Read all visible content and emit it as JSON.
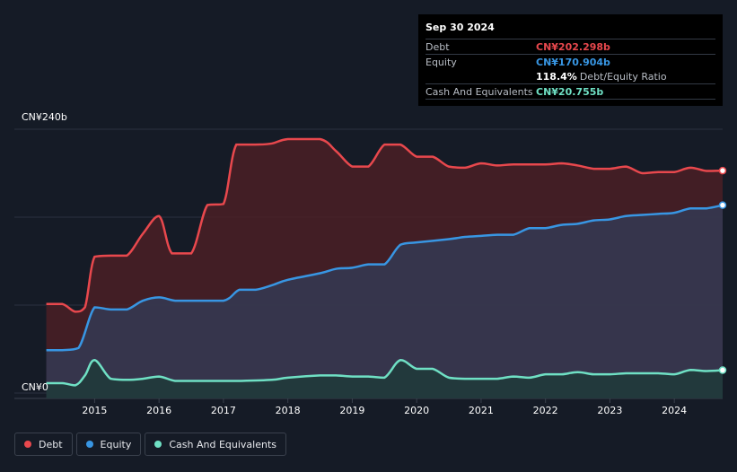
{
  "tooltip": {
    "date": "Sep 30 2024",
    "rows": [
      {
        "label": "Debt",
        "value": "CN¥202.298b",
        "color": "#e8484d"
      },
      {
        "label": "Equity",
        "value": "CN¥170.904b",
        "color": "#3896e3"
      },
      {
        "label": "",
        "value": "118.4%",
        "extra": "Debt/Equity Ratio",
        "color": "#ffffff"
      },
      {
        "label": "Cash And Equivalents",
        "value": "CN¥20.755b",
        "color": "#6fe0c4"
      }
    ]
  },
  "legend": [
    {
      "label": "Debt",
      "color": "#e8484d"
    },
    {
      "label": "Equity",
      "color": "#3896e3"
    },
    {
      "label": "Cash And Equivalents",
      "color": "#6fe0c4"
    }
  ],
  "chart_data": {
    "type": "area",
    "ytop_label": "CN¥240b",
    "ybottom_label": "CN¥0",
    "ylim": [
      0,
      240
    ],
    "xlim": [
      2014.2,
      2024.75
    ],
    "x_ticks": [
      "2015",
      "2016",
      "2017",
      "2018",
      "2019",
      "2020",
      "2021",
      "2022",
      "2023",
      "2024"
    ],
    "grid": true,
    "series": [
      {
        "name": "Debt",
        "color": "#e8484d",
        "fill": "#4a1f26",
        "points": [
          [
            2014.25,
            81
          ],
          [
            2014.5,
            81
          ],
          [
            2014.7,
            74
          ],
          [
            2014.85,
            78
          ],
          [
            2015.0,
            124
          ],
          [
            2015.25,
            125
          ],
          [
            2015.5,
            125
          ],
          [
            2015.75,
            145
          ],
          [
            2016.0,
            161
          ],
          [
            2016.2,
            127
          ],
          [
            2016.5,
            127
          ],
          [
            2016.75,
            171
          ],
          [
            2017.0,
            172
          ],
          [
            2017.2,
            226
          ],
          [
            2017.5,
            226
          ],
          [
            2017.75,
            227
          ],
          [
            2018.0,
            231
          ],
          [
            2018.5,
            231
          ],
          [
            2018.75,
            220
          ],
          [
            2019.0,
            206
          ],
          [
            2019.25,
            206
          ],
          [
            2019.5,
            226
          ],
          [
            2019.75,
            226
          ],
          [
            2020.0,
            215
          ],
          [
            2020.25,
            215
          ],
          [
            2020.5,
            206
          ],
          [
            2020.75,
            205
          ],
          [
            2021.0,
            209
          ],
          [
            2021.25,
            207
          ],
          [
            2021.5,
            208
          ],
          [
            2022.0,
            208
          ],
          [
            2022.25,
            209
          ],
          [
            2022.5,
            207
          ],
          [
            2022.75,
            204
          ],
          [
            2023.0,
            204
          ],
          [
            2023.25,
            206
          ],
          [
            2023.5,
            200
          ],
          [
            2023.75,
            201
          ],
          [
            2024.0,
            201
          ],
          [
            2024.25,
            205
          ],
          [
            2024.5,
            202
          ],
          [
            2024.75,
            202.3
          ]
        ]
      },
      {
        "name": "Equity",
        "color": "#3896e3",
        "fill": "#343a54",
        "points": [
          [
            2014.25,
            39
          ],
          [
            2014.5,
            39
          ],
          [
            2014.75,
            41
          ],
          [
            2015.0,
            78
          ],
          [
            2015.25,
            76
          ],
          [
            2015.5,
            76
          ],
          [
            2015.75,
            84
          ],
          [
            2016.0,
            87
          ],
          [
            2016.25,
            84
          ],
          [
            2016.5,
            84
          ],
          [
            2017.0,
            84
          ],
          [
            2017.25,
            94
          ],
          [
            2017.5,
            94
          ],
          [
            2017.75,
            98
          ],
          [
            2018.0,
            103
          ],
          [
            2018.5,
            109
          ],
          [
            2018.75,
            113
          ],
          [
            2019.0,
            114
          ],
          [
            2019.25,
            117
          ],
          [
            2019.5,
            117
          ],
          [
            2019.75,
            135
          ],
          [
            2020.0,
            137
          ],
          [
            2020.5,
            140
          ],
          [
            2020.75,
            142
          ],
          [
            2021.0,
            143
          ],
          [
            2021.25,
            144
          ],
          [
            2021.5,
            144
          ],
          [
            2021.75,
            150
          ],
          [
            2022.0,
            150
          ],
          [
            2022.25,
            153
          ],
          [
            2022.5,
            154
          ],
          [
            2022.75,
            157
          ],
          [
            2023.0,
            158
          ],
          [
            2023.25,
            161
          ],
          [
            2023.5,
            162
          ],
          [
            2023.75,
            163
          ],
          [
            2024.0,
            164
          ],
          [
            2024.25,
            168
          ],
          [
            2024.5,
            168
          ],
          [
            2024.75,
            170.9
          ]
        ]
      },
      {
        "name": "Cash And Equivalents",
        "color": "#6fe0c4",
        "fill": "#1f3a3a",
        "points": [
          [
            2014.25,
            9
          ],
          [
            2014.5,
            9
          ],
          [
            2014.7,
            7
          ],
          [
            2014.85,
            16
          ],
          [
            2015.0,
            30
          ],
          [
            2015.25,
            13
          ],
          [
            2015.5,
            12
          ],
          [
            2015.75,
            13
          ],
          [
            2016.0,
            15
          ],
          [
            2016.25,
            11
          ],
          [
            2016.5,
            11
          ],
          [
            2017.0,
            11
          ],
          [
            2017.25,
            11
          ],
          [
            2017.75,
            12
          ],
          [
            2018.0,
            14
          ],
          [
            2018.5,
            16
          ],
          [
            2018.75,
            16
          ],
          [
            2019.0,
            15
          ],
          [
            2019.25,
            15
          ],
          [
            2019.5,
            14
          ],
          [
            2019.75,
            30
          ],
          [
            2020.0,
            22
          ],
          [
            2020.25,
            22
          ],
          [
            2020.5,
            14
          ],
          [
            2020.75,
            13
          ],
          [
            2021.0,
            13
          ],
          [
            2021.25,
            13
          ],
          [
            2021.5,
            15
          ],
          [
            2021.75,
            14
          ],
          [
            2022.0,
            17
          ],
          [
            2022.25,
            17
          ],
          [
            2022.5,
            19
          ],
          [
            2022.75,
            17
          ],
          [
            2023.0,
            17
          ],
          [
            2023.25,
            18
          ],
          [
            2023.5,
            18
          ],
          [
            2023.75,
            18
          ],
          [
            2024.0,
            17
          ],
          [
            2024.25,
            21
          ],
          [
            2024.5,
            20
          ],
          [
            2024.75,
            20.8
          ]
        ]
      }
    ]
  }
}
